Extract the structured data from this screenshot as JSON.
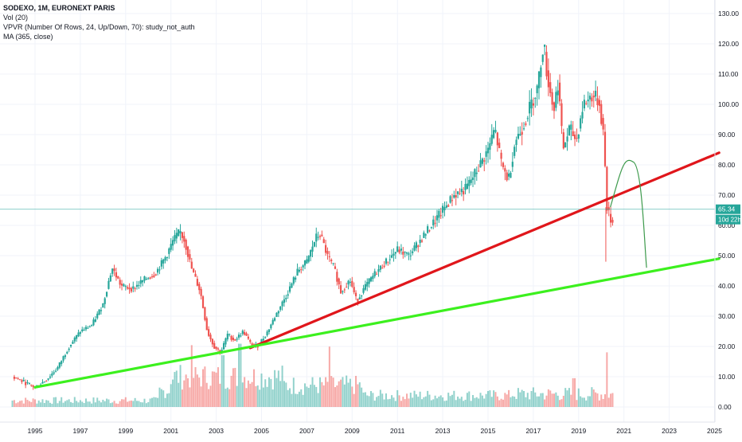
{
  "legend": {
    "title": "SODEXO, 1M, EURONEXT PARIS",
    "vol": "Vol (20)",
    "vpvr": "VPVR (Number Of Rows, 24, Up/Down, 70): study_not_auth",
    "ma": "MA (365, close)"
  },
  "price_label": {
    "value": "65.34",
    "countdown": "10d 22h",
    "value_num": 65.34
  },
  "colors": {
    "up": "#26a69a",
    "down": "#ef5350",
    "red_trendline": "#e0161b",
    "green_trendline": "#3cf01e",
    "projection": "#3d9a4c",
    "price_line": "#26a69a"
  },
  "chart_data": {
    "type": "candlestick",
    "title": "SODEXO, 1M, EURONEXT PARIS",
    "ylim": [
      -4,
      137
    ],
    "y_ticks": [
      0,
      10,
      20,
      30,
      40,
      50,
      60,
      70,
      80,
      90,
      100,
      110,
      120,
      130
    ],
    "y_tick_labels": [
      "0.00",
      "10.00",
      "20.00",
      "30.00",
      "40.00",
      "50.00",
      "60.00",
      "70.00",
      "80.00",
      "90.00",
      "100.00",
      "110.00",
      "120.00",
      "130.00"
    ],
    "x_ticks": [
      1995,
      1997,
      1999,
      2001,
      2003,
      2005,
      2007,
      2009,
      2011,
      2013,
      2015,
      2017,
      2019,
      2021,
      2023,
      2025
    ],
    "x_tick_labels": [
      "1995",
      "1997",
      "1999",
      "2001",
      "2003",
      "2005",
      "2007",
      "2009",
      "2011",
      "2013",
      "2015",
      "2017",
      "2019",
      "2021",
      "2023",
      "2025"
    ],
    "price_path": [
      [
        1994.0,
        10
      ],
      [
        1995.0,
        6.5
      ],
      [
        1995.5,
        9
      ],
      [
        1996.0,
        13
      ],
      [
        1996.5,
        20
      ],
      [
        1997.0,
        25
      ],
      [
        1997.5,
        27
      ],
      [
        1998.0,
        34
      ],
      [
        1998.4,
        46
      ],
      [
        1998.8,
        40
      ],
      [
        1999.3,
        39
      ],
      [
        1999.8,
        42
      ],
      [
        2000.3,
        44
      ],
      [
        2000.8,
        50
      ],
      [
        2001.1,
        55
      ],
      [
        2001.4,
        58
      ],
      [
        2001.6,
        55
      ],
      [
        2001.9,
        46
      ],
      [
        2002.3,
        38
      ],
      [
        2002.6,
        25
      ],
      [
        2002.9,
        20
      ],
      [
        2003.2,
        18
      ],
      [
        2003.5,
        24
      ],
      [
        2003.8,
        22
      ],
      [
        2004.2,
        25
      ],
      [
        2004.5,
        21
      ],
      [
        2004.8,
        20
      ],
      [
        2005.2,
        24
      ],
      [
        2005.6,
        30
      ],
      [
        2006.1,
        37
      ],
      [
        2006.6,
        45
      ],
      [
        2007.0,
        48
      ],
      [
        2007.4,
        56
      ],
      [
        2007.6,
        57
      ],
      [
        2007.9,
        50
      ],
      [
        2008.2,
        46
      ],
      [
        2008.5,
        38
      ],
      [
        2008.9,
        42
      ],
      [
        2009.2,
        35
      ],
      [
        2009.6,
        40
      ],
      [
        2010.0,
        44
      ],
      [
        2010.5,
        48
      ],
      [
        2011.0,
        52
      ],
      [
        2011.5,
        50
      ],
      [
        2012.0,
        55
      ],
      [
        2012.5,
        60
      ],
      [
        2013.0,
        65
      ],
      [
        2013.5,
        70
      ],
      [
        2014.0,
        72
      ],
      [
        2014.5,
        78
      ],
      [
        2015.0,
        85
      ],
      [
        2015.3,
        92
      ],
      [
        2015.6,
        80
      ],
      [
        2015.9,
        75
      ],
      [
        2016.2,
        88
      ],
      [
        2016.5,
        92
      ],
      [
        2016.9,
        100
      ],
      [
        2017.2,
        106
      ],
      [
        2017.45,
        121
      ],
      [
        2017.6,
        110
      ],
      [
        2017.9,
        98
      ],
      [
        2018.1,
        108
      ],
      [
        2018.3,
        85
      ],
      [
        2018.6,
        92
      ],
      [
        2018.9,
        88
      ],
      [
        2019.2,
        100
      ],
      [
        2019.6,
        103
      ],
      [
        2019.9,
        101
      ],
      [
        2020.1,
        90
      ],
      [
        2020.25,
        66
      ],
      [
        2020.4,
        62
      ],
      [
        2020.5,
        61
      ]
    ],
    "trendlines": [
      {
        "name": "",
        "color": "red",
        "points": [
          [
            2004.5,
            19.5
          ],
          [
            2025.2,
            84
          ]
        ]
      },
      {
        "name": "",
        "color": "green",
        "points": [
          [
            1995.0,
            6.5
          ],
          [
            2025.2,
            49
          ]
        ]
      }
    ],
    "projection_curve": [
      [
        2020.4,
        66
      ],
      [
        2020.9,
        76
      ],
      [
        2021.4,
        81
      ],
      [
        2021.8,
        68
      ],
      [
        2022.0,
        46
      ]
    ],
    "volume": "bars along the bottom, peak near 2001-2005 and a spike in early 2020",
    "last_price": 65.34
  }
}
